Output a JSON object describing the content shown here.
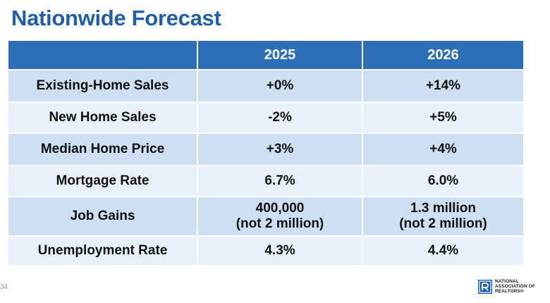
{
  "title": "Nationwide Forecast",
  "table": {
    "header": [
      "",
      "2025",
      "2026"
    ],
    "rows": [
      {
        "label": "Existing-Home Sales",
        "y2025": [
          "+0%"
        ],
        "y2026": [
          "+14%"
        ]
      },
      {
        "label": "New Home Sales",
        "y2025": [
          "-2%"
        ],
        "y2026": [
          "+5%"
        ]
      },
      {
        "label": "Median Home Price",
        "y2025": [
          "+3%"
        ],
        "y2026": [
          "+4%"
        ]
      },
      {
        "label": "Mortgage Rate",
        "y2025": [
          "6.7%"
        ],
        "y2026": [
          "6.0%"
        ]
      },
      {
        "label": "Job Gains",
        "y2025": [
          "400,000",
          "(not 2 million)"
        ],
        "y2026": [
          "1.3 million",
          "(not 2 million)"
        ]
      },
      {
        "label": "Unemployment Rate",
        "y2025": [
          "4.3%"
        ],
        "y2026": [
          "4.4%"
        ]
      }
    ]
  },
  "footer": {
    "slide_number": "34",
    "logo": {
      "line1": "NATIONAL",
      "line2": "ASSOCIATION OF",
      "line3": "REALTORS®"
    }
  },
  "colors": {
    "title": "#1f5fa8",
    "header_bg": "#2c6eb7",
    "row_dark": "#cddff0",
    "row_light": "#e8f1f9"
  }
}
